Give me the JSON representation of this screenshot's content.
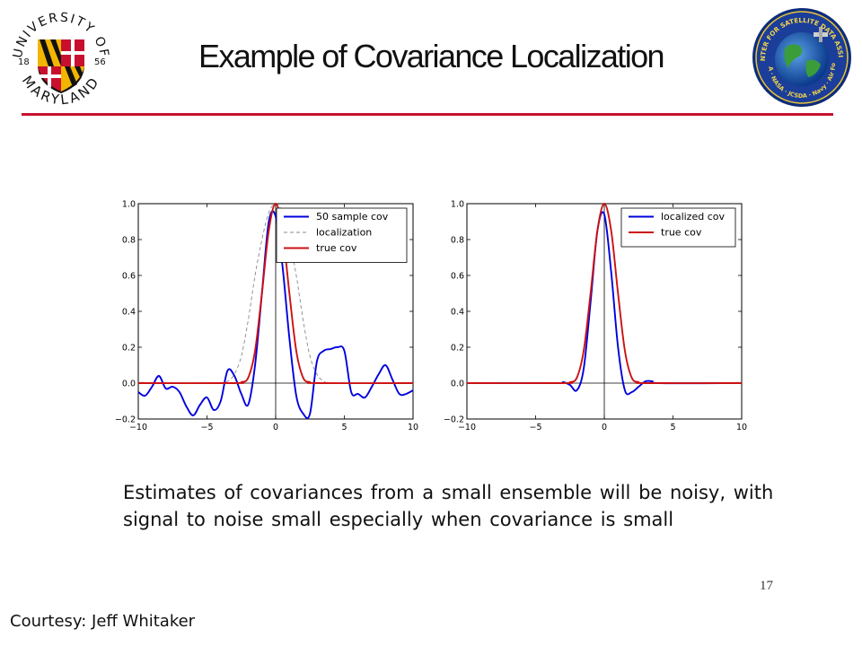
{
  "slide": {
    "title": "Example of Covariance Localization",
    "body_text": "Estimates of covariances from a small ensemble will be noisy, with signal to noise small especially when covariance is small",
    "page_number": "17",
    "courtesy": "Courtesy: Jeff Whitaker"
  },
  "logos": {
    "left": {
      "text_top": "UNIVERSITY OF",
      "text_bottom": "MARYLAND",
      "year_left": "18",
      "year_right": "56"
    },
    "right": {
      "text": "JOINT CENTER FOR SATELLITE DATA ASSIMILATION",
      "agencies": "NOAA · NASA · JCSDA · Navy · Air Force"
    }
  },
  "colors": {
    "accent_rule": "#c8102e",
    "sample_cov": "#0000dd",
    "true_cov": "#cc1111",
    "localization": "#888888"
  },
  "chart_data": [
    {
      "type": "line",
      "xlim": [
        -10,
        10
      ],
      "ylim": [
        -0.2,
        1.0
      ],
      "xticks": [
        "−10",
        "−5",
        "0",
        "5",
        "10"
      ],
      "yticks": [
        "−0.2",
        "0.0",
        "0.2",
        "0.4",
        "0.6",
        "0.8",
        "1.0"
      ],
      "legend_position": "top-right",
      "series": [
        {
          "name": "50 sample cov",
          "color": "#0000dd",
          "style": "solid",
          "x": [
            -10,
            -9.5,
            -9,
            -8.5,
            -8,
            -7.5,
            -7,
            -6.5,
            -6,
            -5.5,
            -5,
            -4.5,
            -4,
            -3.5,
            -3,
            -2.5,
            -2,
            -1.5,
            -1,
            -0.5,
            0,
            0.5,
            1,
            1.5,
            2,
            2.5,
            3,
            3.5,
            4,
            4.5,
            5,
            5.5,
            6,
            6.5,
            7,
            7.5,
            8,
            8.5,
            9,
            9.5,
            10
          ],
          "y": [
            -0.05,
            -0.07,
            -0.02,
            0.04,
            -0.03,
            -0.02,
            -0.05,
            -0.13,
            -0.18,
            -0.12,
            -0.08,
            -0.15,
            -0.1,
            0.07,
            0.04,
            -0.06,
            -0.12,
            0.1,
            0.5,
            0.9,
            0.93,
            0.65,
            0.25,
            -0.07,
            -0.17,
            -0.17,
            0.12,
            0.18,
            0.19,
            0.2,
            0.18,
            -0.05,
            -0.06,
            -0.08,
            -0.02,
            0.05,
            0.1,
            0.02,
            -0.06,
            -0.06,
            -0.04
          ]
        },
        {
          "name": "localization",
          "color": "#888888",
          "style": "dashed",
          "x": [
            -10,
            -9,
            -8,
            -7,
            -6,
            -5,
            -4,
            -3.5,
            -3,
            -2.5,
            -2,
            -1.5,
            -1,
            -0.5,
            0,
            0.5,
            1,
            1.5,
            2,
            2.5,
            3,
            3.5,
            4,
            5,
            6,
            7,
            8,
            9,
            10
          ],
          "y": [
            0,
            0,
            0,
            0,
            0,
            0,
            0,
            0.01,
            0.05,
            0.15,
            0.35,
            0.6,
            0.8,
            0.95,
            1.0,
            0.95,
            0.8,
            0.6,
            0.35,
            0.15,
            0.05,
            0.01,
            0,
            0,
            0,
            0,
            0,
            0,
            0
          ]
        },
        {
          "name": "true cov",
          "color": "#cc1111",
          "style": "solid",
          "x": [
            -10,
            -3,
            -2.5,
            -2,
            -1.5,
            -1,
            -0.5,
            0,
            0.5,
            1,
            1.5,
            2,
            2.5,
            3,
            10
          ],
          "y": [
            0,
            0,
            0.005,
            0.03,
            0.18,
            0.5,
            0.85,
            1.0,
            0.85,
            0.5,
            0.18,
            0.03,
            0.005,
            0,
            0
          ]
        }
      ]
    },
    {
      "type": "line",
      "xlim": [
        -10,
        10
      ],
      "ylim": [
        -0.2,
        1.0
      ],
      "xticks": [
        "−10",
        "−5",
        "0",
        "5",
        "10"
      ],
      "yticks": [
        "−0.2",
        "0.0",
        "0.2",
        "0.4",
        "0.6",
        "0.8",
        "1.0"
      ],
      "legend_position": "top-right",
      "series": [
        {
          "name": "localized cov",
          "color": "#0000dd",
          "style": "solid",
          "x": [
            -10,
            -3.5,
            -3,
            -2.5,
            -2,
            -1.5,
            -1,
            -0.5,
            0,
            0.5,
            1,
            1.5,
            2,
            2.5,
            3,
            3.5,
            4,
            10
          ],
          "y": [
            0,
            0,
            0.005,
            -0.01,
            -0.04,
            0.08,
            0.45,
            0.85,
            0.94,
            0.62,
            0.2,
            -0.04,
            -0.05,
            -0.02,
            0.01,
            0.01,
            0,
            0
          ]
        },
        {
          "name": "true cov",
          "color": "#cc1111",
          "style": "solid",
          "x": [
            -10,
            -3,
            -2.5,
            -2,
            -1.5,
            -1,
            -0.5,
            0,
            0.5,
            1,
            1.5,
            2,
            2.5,
            3,
            10
          ],
          "y": [
            0,
            0,
            0.005,
            0.03,
            0.18,
            0.5,
            0.85,
            1.0,
            0.85,
            0.5,
            0.18,
            0.03,
            0.005,
            0,
            0
          ]
        }
      ]
    }
  ]
}
